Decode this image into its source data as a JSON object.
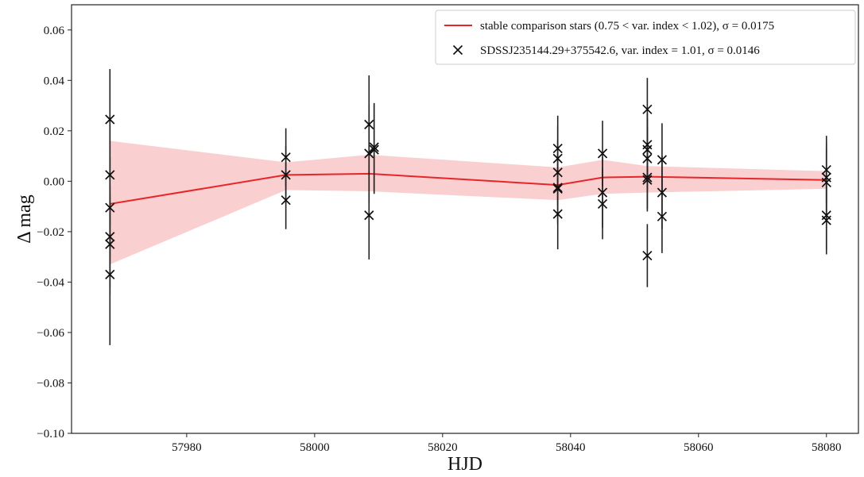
{
  "chart_data": {
    "type": "scatter",
    "title": "",
    "xlabel": "HJD",
    "ylabel": "Δ mag",
    "xlim": [
      57962,
      58085
    ],
    "ylim": [
      -0.1,
      0.07
    ],
    "xticks": [
      57980,
      58000,
      58020,
      58040,
      58060,
      58080
    ],
    "yticks": [
      -0.1,
      -0.08,
      -0.06,
      -0.04,
      -0.02,
      0.0,
      0.02,
      0.04,
      0.06
    ],
    "xtick_labels": [
      "57980",
      "58000",
      "58020",
      "58040",
      "58060",
      "58080"
    ],
    "ytick_labels": [
      "−0.10",
      "−0.08",
      "−0.06",
      "−0.04",
      "−0.02",
      "0.00",
      "0.02",
      "0.04",
      "0.06"
    ],
    "grid": false,
    "legend_position": "top-right",
    "series": [
      {
        "name": "stable comparison stars (0.75 < var. index < 1.02), σ = 0.0175",
        "kind": "line_with_band",
        "color": "#e8262a",
        "band_color": "#f7b5b5",
        "x": [
          57968,
          57995.5,
          58008.5,
          58038,
          58045,
          58052,
          58080
        ],
        "y": [
          -0.009,
          0.0025,
          0.003,
          -0.0015,
          0.0015,
          0.0018,
          0.0005
        ],
        "band_low": [
          -0.033,
          -0.0035,
          -0.004,
          -0.0075,
          -0.005,
          -0.0045,
          -0.003
        ],
        "band_high": [
          0.016,
          0.0075,
          0.0105,
          0.0055,
          0.0085,
          0.006,
          0.004
        ]
      },
      {
        "name": "SDSSJ235144.29+375542.6, var. index = 1.01, σ    = 0.0146",
        "kind": "scatter_errorbar",
        "marker": "x",
        "color": "#111111",
        "points": [
          {
            "x": 57968,
            "y": 0.0245,
            "err": 0.02
          },
          {
            "x": 57968,
            "y": 0.0025,
            "err": 0.02
          },
          {
            "x": 57968,
            "y": -0.0105,
            "err": 0.02
          },
          {
            "x": 57968,
            "y": -0.022,
            "err": 0.02
          },
          {
            "x": 57968,
            "y": -0.025,
            "err": 0.02
          },
          {
            "x": 57968,
            "y": -0.037,
            "err": 0.028
          },
          {
            "x": 57995.5,
            "y": 0.0095,
            "err": 0.0115
          },
          {
            "x": 57995.5,
            "y": 0.0025,
            "err": 0.0115
          },
          {
            "x": 57995.5,
            "y": -0.0075,
            "err": 0.0115
          },
          {
            "x": 58008.5,
            "y": 0.0225,
            "err": 0.0195
          },
          {
            "x": 58008.5,
            "y": 0.011,
            "err": 0.0195
          },
          {
            "x": 58008.5,
            "y": -0.0135,
            "err": 0.0175
          },
          {
            "x": 58009.3,
            "y": 0.0135,
            "err": 0.0175
          },
          {
            "x": 58009.3,
            "y": 0.0125,
            "err": 0.0175
          },
          {
            "x": 58038,
            "y": 0.013,
            "err": 0.013
          },
          {
            "x": 58038,
            "y": 0.009,
            "err": 0.013
          },
          {
            "x": 58038,
            "y": 0.0035,
            "err": 0.013
          },
          {
            "x": 58038,
            "y": -0.0025,
            "err": 0.014
          },
          {
            "x": 58038,
            "y": -0.003,
            "err": 0.014
          },
          {
            "x": 58038,
            "y": -0.013,
            "err": 0.014
          },
          {
            "x": 58045,
            "y": 0.011,
            "err": 0.013
          },
          {
            "x": 58045,
            "y": -0.0045,
            "err": 0.014
          },
          {
            "x": 58045,
            "y": -0.009,
            "err": 0.014
          },
          {
            "x": 58052,
            "y": 0.0285,
            "err": 0.0125
          },
          {
            "x": 58052,
            "y": 0.0145,
            "err": 0.0125
          },
          {
            "x": 58052,
            "y": 0.0125,
            "err": 0.0125
          },
          {
            "x": 58052,
            "y": 0.009,
            "err": 0.0125
          },
          {
            "x": 58052,
            "y": 0.0015,
            "err": 0.0125
          },
          {
            "x": 58052,
            "y": 0.0005,
            "err": 0.0125
          },
          {
            "x": 58052,
            "y": -0.0295,
            "err": 0.0125
          },
          {
            "x": 58054.3,
            "y": 0.0085,
            "err": 0.0145
          },
          {
            "x": 58054.3,
            "y": -0.0045,
            "err": 0.0145
          },
          {
            "x": 58054.3,
            "y": -0.014,
            "err": 0.0145
          },
          {
            "x": 58080,
            "y": 0.0045,
            "err": 0.0135
          },
          {
            "x": 58080,
            "y": 0.0015,
            "err": 0.0135
          },
          {
            "x": 58080,
            "y": -0.0005,
            "err": 0.0135
          },
          {
            "x": 58080,
            "y": -0.0135,
            "err": 0.0135
          },
          {
            "x": 58080,
            "y": -0.0155,
            "err": 0.0135
          }
        ]
      }
    ]
  }
}
